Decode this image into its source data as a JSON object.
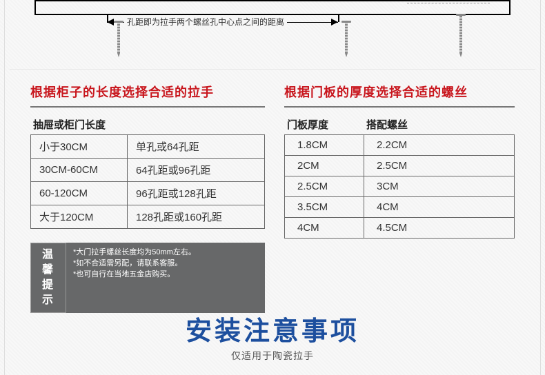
{
  "diagram": {
    "label": "孔距即为拉手两个螺丝孔中心点之间的距离"
  },
  "left_section": {
    "title": "根据柜子的长度选择合适的拉手",
    "header": "抽屉或柜门长度",
    "rows": [
      [
        "小于30CM",
        "单孔或64孔距"
      ],
      [
        "30CM-60CM",
        "64孔距或96孔距"
      ],
      [
        "60-120CM",
        "96孔距或128孔距"
      ],
      [
        "大于120CM",
        "128孔距或160孔距"
      ]
    ]
  },
  "right_section": {
    "title": "根据门板的厚度选择合适的螺丝",
    "header_a": "门板厚度",
    "header_b": "搭配螺丝",
    "rows": [
      [
        "1.8CM",
        "2.2CM"
      ],
      [
        "2CM",
        "2.5CM"
      ],
      [
        "2.5CM",
        "3CM"
      ],
      [
        "3.5CM",
        "4CM"
      ],
      [
        "4CM",
        "4.5CM"
      ]
    ]
  },
  "tip": {
    "label_line1": "温馨",
    "label_line2": "提示",
    "line1": "*大门拉手螺丝长度均为50mm左右。",
    "line2": "*如不合适需另配，请联系客服。",
    "line3": "*也可自行在当地五金店购买。"
  },
  "footer": {
    "main": "安装注意事项",
    "sub": "仅适用于陶瓷拉手"
  },
  "colors": {
    "accent_red": "#c8161d",
    "accent_blue": "#1d4f9e",
    "tip_bg": "#676869",
    "border": "#666"
  }
}
